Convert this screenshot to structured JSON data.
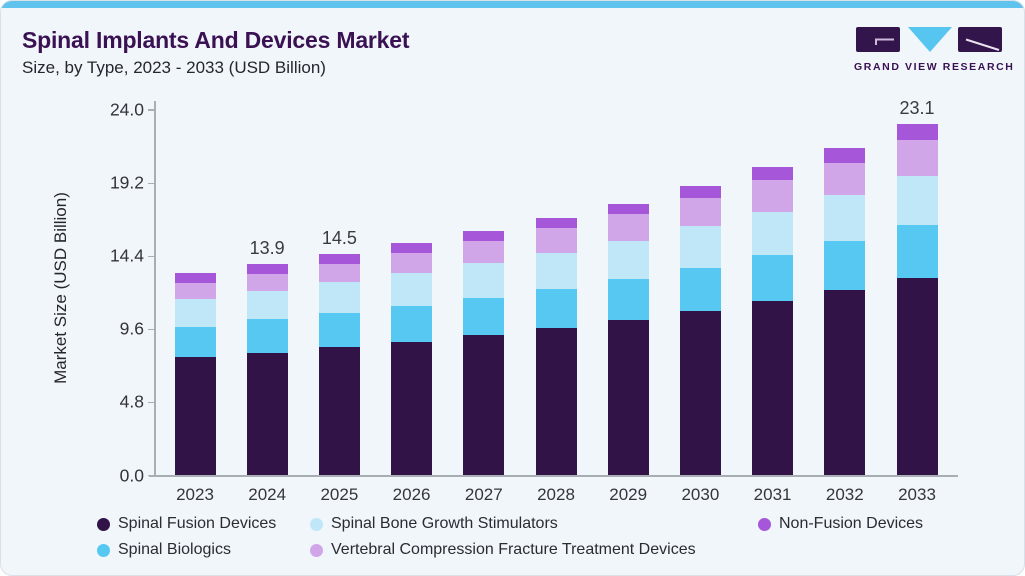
{
  "header": {
    "title": "Spinal Implants And Devices Market",
    "subtitle": "Size, by Type, 2023 - 2033 (USD Billion)"
  },
  "logo": {
    "text": "GRAND VIEW RESEARCH"
  },
  "colors": {
    "accent_top_bar": "#5fc3ee",
    "title": "#3a1153",
    "background": "#f1f6fa",
    "axis": "#a9aeb4",
    "logo_dark": "#32154a",
    "logo_blue": "#56c5f0"
  },
  "chart_data": {
    "type": "bar",
    "stacked": true,
    "title": "Spinal Implants And Devices Market Size, by Type, 2023 - 2033 (USD Billion)",
    "xlabel": "",
    "ylabel": "Market Size (USD Billion)",
    "ylim": [
      0,
      24
    ],
    "ytick_labels": [
      "0.0",
      "4.8",
      "9.6",
      "14.4",
      "19.2",
      "24.0"
    ],
    "grid": false,
    "legend_position": "bottom",
    "categories": [
      "2023",
      "2024",
      "2025",
      "2026",
      "2027",
      "2028",
      "2029",
      "2030",
      "2031",
      "2032",
      "2033"
    ],
    "series": [
      {
        "name": "Spinal Fusion Devices",
        "color": "#311348",
        "values": [
          7.78,
          8.04,
          8.41,
          8.8,
          9.22,
          9.67,
          10.22,
          10.82,
          11.48,
          12.18,
          12.98
        ]
      },
      {
        "name": "Spinal Biologics",
        "color": "#57c8f2",
        "values": [
          2.0,
          2.22,
          2.28,
          2.33,
          2.41,
          2.57,
          2.68,
          2.81,
          3.03,
          3.22,
          3.51
        ]
      },
      {
        "name": "Spinal Bone Growth Stimulators",
        "color": "#bfe7f8",
        "values": [
          1.79,
          1.85,
          2.03,
          2.16,
          2.36,
          2.4,
          2.5,
          2.79,
          2.78,
          3.0,
          3.18
        ]
      },
      {
        "name": "Vertebral Compression Fracture Treatment Devices",
        "color": "#d0a6e9",
        "values": [
          1.08,
          1.13,
          1.17,
          1.33,
          1.41,
          1.63,
          1.76,
          1.82,
          2.12,
          2.15,
          2.36
        ]
      },
      {
        "name": "Non-Fusion Devices",
        "color": "#a656d9",
        "values": [
          0.68,
          0.64,
          0.66,
          0.67,
          0.65,
          0.66,
          0.7,
          0.75,
          0.83,
          0.97,
          1.04
        ]
      }
    ],
    "totals": [
      13.33,
      13.88,
      14.55,
      15.29,
      16.05,
      16.93,
      17.86,
      18.99,
      20.24,
      21.52,
      23.07
    ],
    "total_labels": {
      "2024": "13.9",
      "2025": "14.5",
      "2033": "23.1"
    }
  },
  "legend": {
    "items": [
      {
        "label": "Spinal Fusion Devices",
        "color": "#311348"
      },
      {
        "label": "Spinal Bone Growth Stimulators",
        "color": "#bfe7f8"
      },
      {
        "label": "Non-Fusion Devices",
        "color": "#a656d9"
      },
      {
        "label": "Spinal Biologics",
        "color": "#57c8f2"
      },
      {
        "label": "Vertebral Compression Fracture Treatment Devices",
        "color": "#d0a6e9"
      }
    ]
  }
}
